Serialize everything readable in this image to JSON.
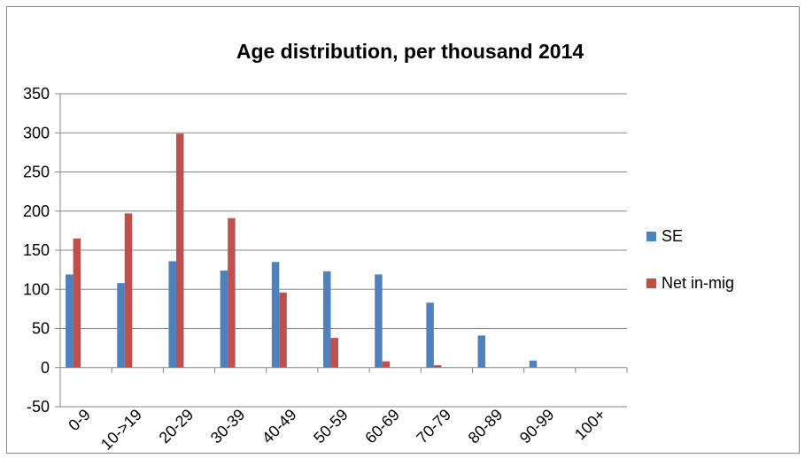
{
  "chart_data": {
    "type": "bar",
    "title": "Age distribution, per thousand 2014",
    "xlabel": "",
    "ylabel": "",
    "categories": [
      "0-9",
      "10->19",
      "20-29",
      "30-39",
      "40-49",
      "50-59",
      "60-69",
      "70-79",
      "80-89",
      "90-99",
      "100+"
    ],
    "series": [
      {
        "name": "SE",
        "color": "#4f81bd",
        "values": [
          119,
          108,
          136,
          124,
          135,
          123,
          119,
          83,
          41,
          9,
          0
        ]
      },
      {
        "name": "Net in-mig",
        "color": "#c0504d",
        "values": [
          165,
          197,
          299,
          191,
          96,
          38,
          8,
          3,
          0,
          0,
          0
        ]
      }
    ],
    "ylim": [
      -50,
      350
    ],
    "yticks": [
      "350",
      "300",
      "250",
      "200",
      "150",
      "100",
      "50",
      "0",
      "-50"
    ],
    "grid": true,
    "legend_position": "right"
  }
}
